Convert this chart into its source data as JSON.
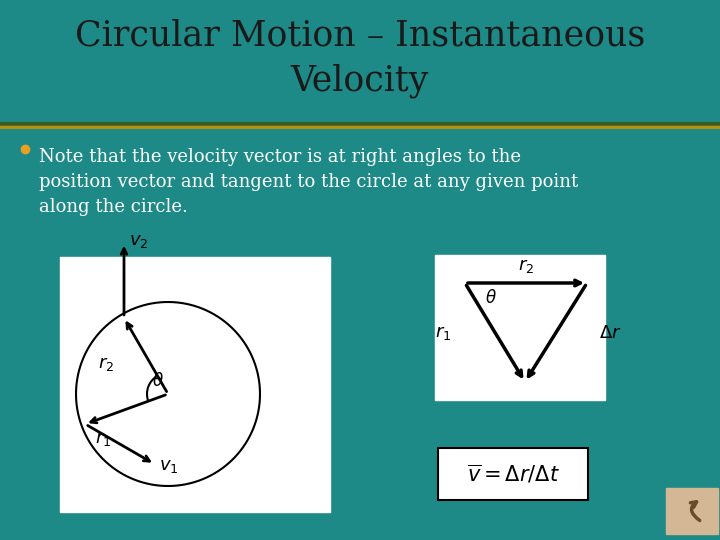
{
  "title": "Circular Motion – Instantaneous\nVelocity",
  "title_bg": "#f5c89a",
  "body_bg": "#1e8a87",
  "title_color": "#1a1a1a",
  "body_text_color": "#ffffff",
  "bullet_color": "#e8a020",
  "bullet_text": "Note that the velocity vector is at right angles to the\nposition vector and tangent to the circle at any given point\nalong the circle.",
  "separator_color1": "#3a5a20",
  "separator_color2": "#b89010",
  "font_size_title": 25,
  "font_size_body": 13,
  "icon_bg": "#d4b896",
  "icon_color": "#6b4c2a"
}
